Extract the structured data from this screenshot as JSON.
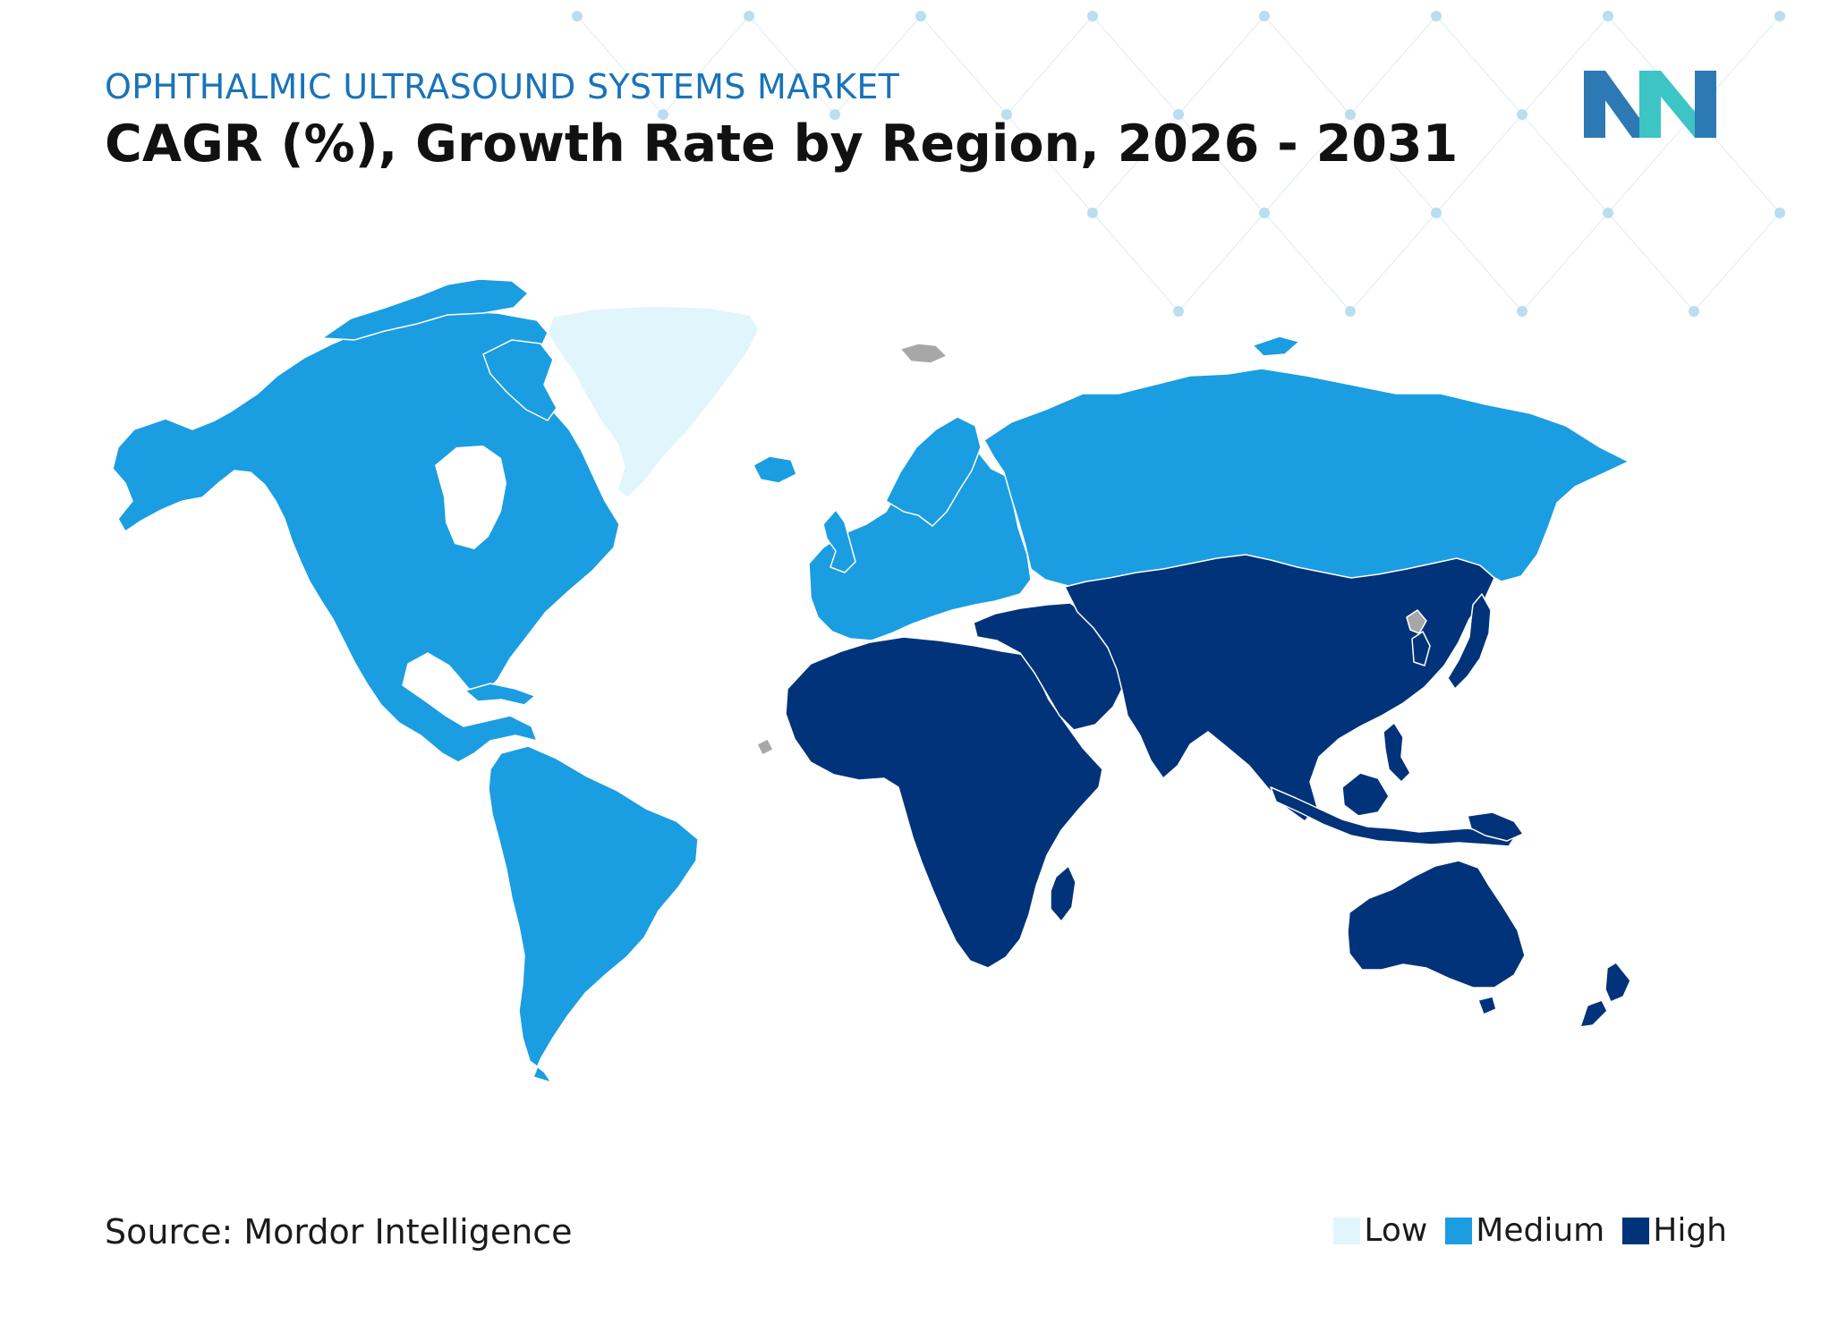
{
  "header": {
    "subtitle": "OPHTHALMIC ULTRASOUND SYSTEMS MARKET",
    "title": "CAGR (%), Growth Rate by Region, 2026 - 2031"
  },
  "footer": {
    "source": "Source: Mordor Intelligence"
  },
  "legend": [
    {
      "label": "Low",
      "color": "#e1f5fc"
    },
    {
      "label": "Medium",
      "color": "#1b9de2"
    },
    {
      "label": "High",
      "color": "#00337a"
    }
  ],
  "colors": {
    "subtitle": "#1a73b9",
    "no_data": "#a7a7a7",
    "pattern_node": "#b9def0",
    "logo_dark": "#2c79b4",
    "logo_teal": "#3dc4c4"
  },
  "map_data": {
    "regions": [
      {
        "name": "Greenland",
        "category": "Low"
      },
      {
        "name": "North America",
        "category": "Medium"
      },
      {
        "name": "South America",
        "category": "Medium"
      },
      {
        "name": "Europe",
        "category": "Medium"
      },
      {
        "name": "Russia",
        "category": "Medium"
      },
      {
        "name": "Africa",
        "category": "High"
      },
      {
        "name": "Middle East",
        "category": "High"
      },
      {
        "name": "Asia-Pacific",
        "category": "High"
      },
      {
        "name": "Australia and New Zealand",
        "category": "High"
      }
    ]
  },
  "icons": {
    "logo": "mordor-intelligence-logo"
  }
}
